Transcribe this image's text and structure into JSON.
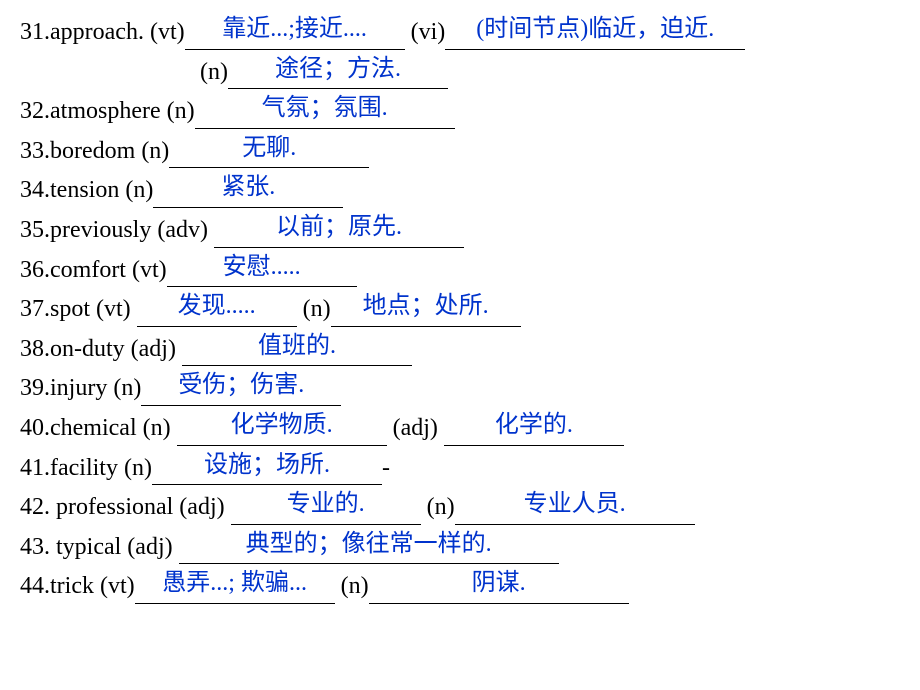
{
  "style": {
    "text_color": "#000000",
    "answer_color": "#0033cc",
    "background_color": "#ffffff",
    "font_size_pt": 18,
    "font_family": "Times New Roman",
    "underline_color": "#000000"
  },
  "lines": [
    {
      "num": "31",
      "parts": [
        {
          "label": "31.approach. (vt)",
          "blank_w": 220,
          "ans": "靠近...;接近....",
          "mid": " (vi)",
          "blank2_w": 300,
          "ans2": "(时间节点)临近，迫近."
        }
      ],
      "sub": [
        {
          "label": "(n)",
          "blank_w": 220,
          "ans": "途径；方法."
        }
      ]
    },
    {
      "num": "32",
      "label": "32.atmosphere (n)",
      "blank_w": 260,
      "ans": "气氛；氛围."
    },
    {
      "num": "33",
      "label": "33.boredom (n)",
      "blank_w": 200,
      "ans": "无聊."
    },
    {
      "num": "34",
      "label": "34.tension (n)",
      "blank_w": 190,
      "ans": "紧张."
    },
    {
      "num": "35",
      "label": "35.previously  (adv) ",
      "blank_w": 250,
      "ans": "以前；原先."
    },
    {
      "num": "36",
      "label": "36.comfort (vt)",
      "blank_w": 190,
      "ans": "安慰....."
    },
    {
      "num": "37",
      "label": "37.spot (vt) ",
      "blank_w": 160,
      "ans": "发现.....",
      "mid": "  (n)",
      "blank2_w": 190,
      "ans2": "地点；处所."
    },
    {
      "num": "38",
      "label": "38.on-duty (adj) ",
      "blank_w": 230,
      "ans": "值班的."
    },
    {
      "num": "39",
      "label": "39.injury (n)",
      "blank_w": 200,
      "ans": "受伤；伤害."
    },
    {
      "num": "40",
      "label": "40.chemical (n) ",
      "blank_w": 210,
      "ans": "化学物质.",
      "mid": " (adj) ",
      "blank2_w": 180,
      "ans2": "化学的."
    },
    {
      "num": "41",
      "label": "41.facility (n)",
      "blank_w": 230,
      "ans": "设施；场所.",
      "tail": "-"
    },
    {
      "num": "42",
      "label": "42. professional (adj) ",
      "blank_w": 190,
      "ans": "专业的.",
      "mid": " (n)",
      "blank2_w": 240,
      "ans2": "专业人员."
    },
    {
      "num": "43",
      "label": "43. typical (adj) ",
      "blank_w": 380,
      "ans": "典型的；像往常一样的."
    },
    {
      "num": "44",
      "label": "44.trick (vt)",
      "blank_w": 200,
      "ans": "愚弄...; 欺骗...",
      "mid": " (n)",
      "blank2_w": 260,
      "ans2": "阴谋."
    }
  ]
}
